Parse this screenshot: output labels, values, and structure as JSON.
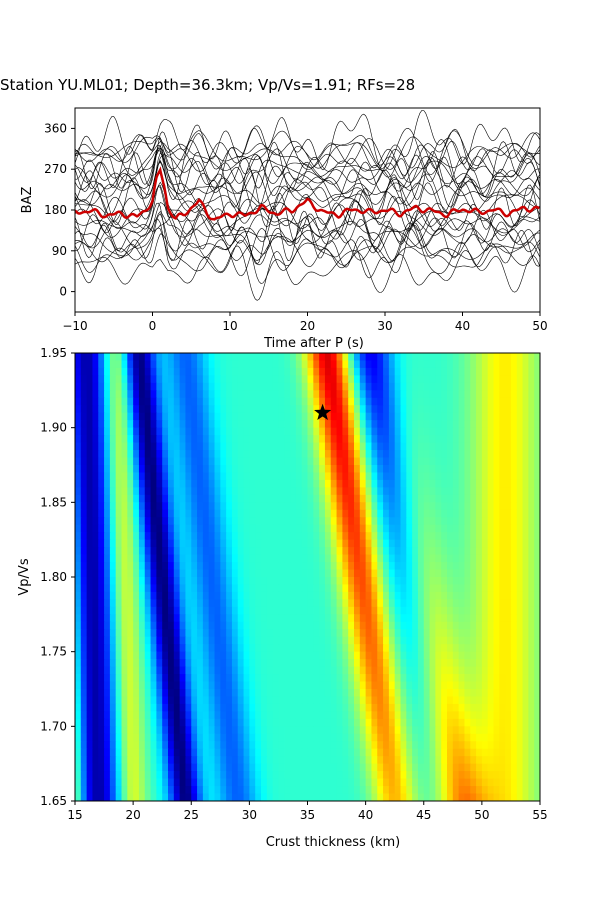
{
  "title": "Station YU.ML01; Depth=36.3km; Vp/Vs=1.91; RFs=28",
  "chart_data": [
    {
      "type": "line",
      "panel": "receiver-functions",
      "xlabel": "Time after P (s)",
      "ylabel": "BAZ",
      "xlim": [
        -10,
        50
      ],
      "ylim": [
        -45,
        405
      ],
      "xticks": [
        -10,
        0,
        10,
        20,
        30,
        40,
        50
      ],
      "yticks": [
        0,
        90,
        180,
        270,
        360
      ],
      "n_traces": 28,
      "trace_color": "#000000",
      "stack_color": "#cc0000",
      "stack": {
        "name": "stack",
        "x": [
          -10,
          -8,
          -6,
          -4,
          -2,
          -1,
          0,
          0.5,
          1,
          1.5,
          2,
          3,
          4,
          5,
          6,
          7,
          8,
          10,
          12,
          14,
          16,
          18,
          20,
          22,
          24,
          26,
          28,
          30,
          32,
          34,
          36,
          38,
          40,
          42,
          44,
          46,
          48,
          50
        ],
        "values": [
          175,
          178,
          168,
          172,
          165,
          178,
          200,
          245,
          268,
          235,
          185,
          160,
          170,
          185,
          200,
          175,
          158,
          172,
          168,
          185,
          172,
          180,
          200,
          175,
          170,
          182,
          175,
          180,
          172,
          185,
          178,
          170,
          182,
          175,
          180,
          172,
          185,
          180
        ]
      },
      "grid": false
    },
    {
      "type": "heatmap",
      "panel": "h-kappa-stack",
      "xlabel": "Crust thickness (km)",
      "ylabel": "Vp/Vs",
      "xlim": [
        15,
        55
      ],
      "ylim": [
        1.65,
        1.95
      ],
      "xticks": [
        15,
        20,
        25,
        30,
        35,
        40,
        45,
        50,
        55
      ],
      "yticks": [
        1.65,
        1.7,
        1.75,
        1.8,
        1.85,
        1.9,
        1.95
      ],
      "colormap": "jet",
      "best_fit": {
        "thickness_km": 36.3,
        "vp_vs": 1.91,
        "marker": "star"
      },
      "grid": false
    }
  ]
}
